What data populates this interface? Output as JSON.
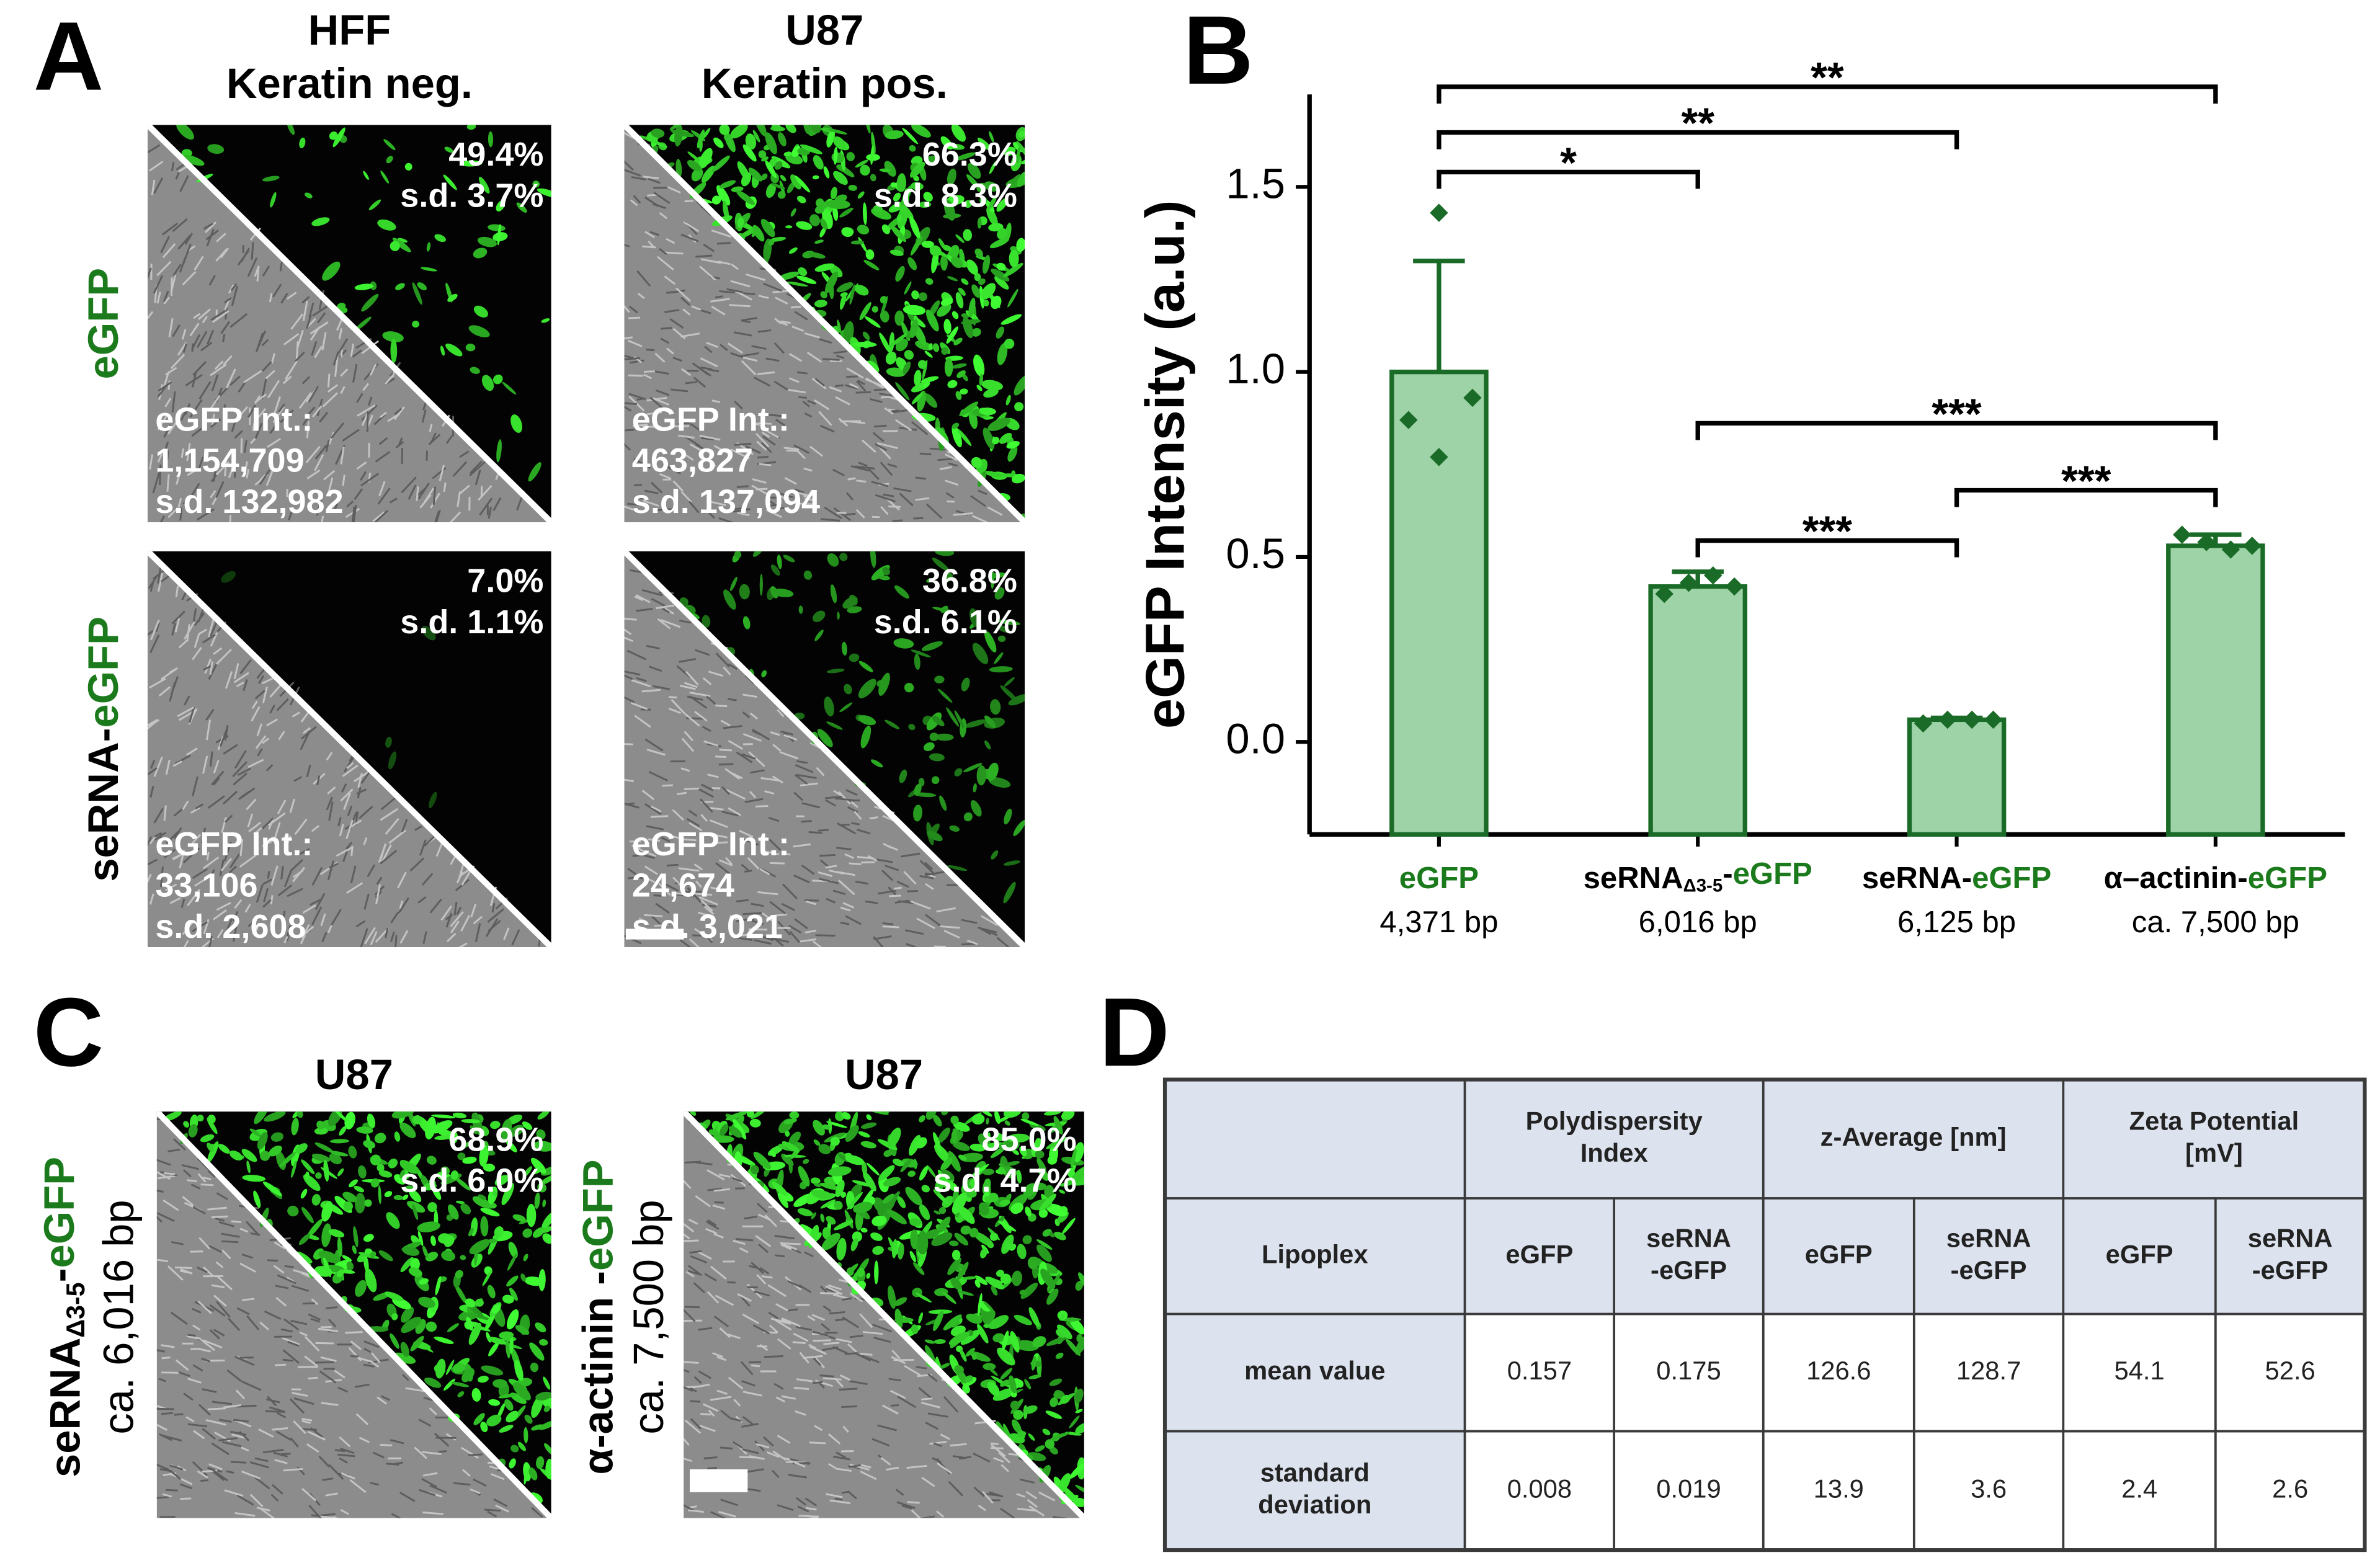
{
  "chart_data": {
    "type": "bar",
    "panel_label": "B",
    "ylabel": "eGFP Intensity (a.u.)",
    "categories": [
      "eGFP",
      "seRNAΔ3-5-eGFP",
      "seRNA-eGFP",
      "α–actinin-eGFP"
    ],
    "category_sizes": [
      "4,371 bp",
      "6,016 bp",
      "6,125 bp",
      "ca. 7,500 bp"
    ],
    "values": [
      1.0,
      0.42,
      0.06,
      0.53
    ],
    "errors": [
      0.3,
      0.04,
      0.005,
      0.03
    ],
    "points": [
      [
        1.43,
        0.93,
        0.87,
        0.77
      ],
      [
        0.4,
        0.43,
        0.45,
        0.42
      ],
      [
        0.05,
        0.06,
        0.06,
        0.06
      ],
      [
        0.56,
        0.54,
        0.52,
        0.53
      ]
    ],
    "color": "#1b6b28",
    "fill": "#9dd3a6",
    "ylim": [
      -0.25,
      1.75
    ],
    "yticks": [
      {
        "value": 0,
        "label": "0.0"
      },
      0.5,
      {
        "value": 1,
        "label": "1.0"
      },
      1.5
    ],
    "significance": [
      {
        "pair": [
          0,
          1
        ],
        "label": "*"
      },
      {
        "pair": [
          0,
          2
        ],
        "label": "**"
      },
      {
        "pair": [
          0,
          3
        ],
        "label": "**"
      },
      {
        "pair": [
          1,
          2
        ],
        "label": "***"
      },
      {
        "pair": [
          1,
          3
        ],
        "label": "***"
      },
      {
        "pair": [
          2,
          3
        ],
        "label": "***"
      }
    ]
  },
  "panel_A": {
    "label": "A",
    "columns": [
      [
        "HFF",
        "Keratin neg."
      ],
      [
        "U87",
        "Keratin pos."
      ]
    ],
    "rows": [
      "eGFP",
      "seRNA-eGFP"
    ],
    "images": [
      [
        {
          "top": [
            "49.4%",
            "s.d. 3.7%"
          ],
          "bottom": [
            "eGFP Int.:",
            "1,154,709",
            "s.d. 132,982"
          ]
        },
        {
          "top": [
            "66.3%",
            "s.d. 8.3%"
          ],
          "bottom": [
            "eGFP Int.:",
            "463,827",
            "s.d. 137,094"
          ]
        }
      ],
      [
        {
          "top": [
            "7.0%",
            "s.d. 1.1%"
          ],
          "bottom": [
            "eGFP Int.:",
            "33,106",
            "s.d. 2,608"
          ]
        },
        {
          "top": [
            "36.8%",
            "s.d. 6.1%"
          ],
          "bottom": [
            "eGFP Int.:",
            "24,674",
            "s.d. 3,021"
          ]
        }
      ]
    ]
  },
  "panel_C": {
    "label": "C",
    "columns": [
      "U87",
      "U87"
    ],
    "labels": [
      [
        "seRNAΔ3-5-eGFP",
        "ca. 6,016 bp"
      ],
      [
        "α-actinin -eGFP",
        "ca. 7,500 bp"
      ]
    ],
    "images": [
      {
        "top": [
          "68.9%",
          "s.d. 6.0%"
        ]
      },
      {
        "top": [
          "85.0%",
          "s.d. 4.7%"
        ]
      }
    ]
  },
  "panel_D": {
    "label": "D",
    "header": [
      [
        "Polydispersity",
        "Index"
      ],
      [
        "z-Average [nm]"
      ],
      [
        "Zeta Potential",
        "[mV]"
      ]
    ],
    "rows": [
      [
        [
          "Lipoplex"
        ],
        [
          "eGFP"
        ],
        [
          "seRNA",
          "-eGFP"
        ],
        [
          "eGFP"
        ],
        [
          "seRNA",
          "-eGFP"
        ],
        [
          "eGFP"
        ],
        [
          "seRNA",
          "-eGFP"
        ]
      ],
      [
        [
          "mean value"
        ],
        [
          "0.157"
        ],
        [
          "0.175"
        ],
        [
          "126.6"
        ],
        [
          "128.7"
        ],
        [
          "54.1"
        ],
        [
          "52.6"
        ]
      ],
      [
        [
          "standard",
          "deviation"
        ],
        [
          "0.008"
        ],
        [
          "0.019"
        ],
        [
          "13.9"
        ],
        [
          "3.6"
        ],
        [
          "2.4"
        ],
        [
          "2.6"
        ]
      ]
    ]
  }
}
